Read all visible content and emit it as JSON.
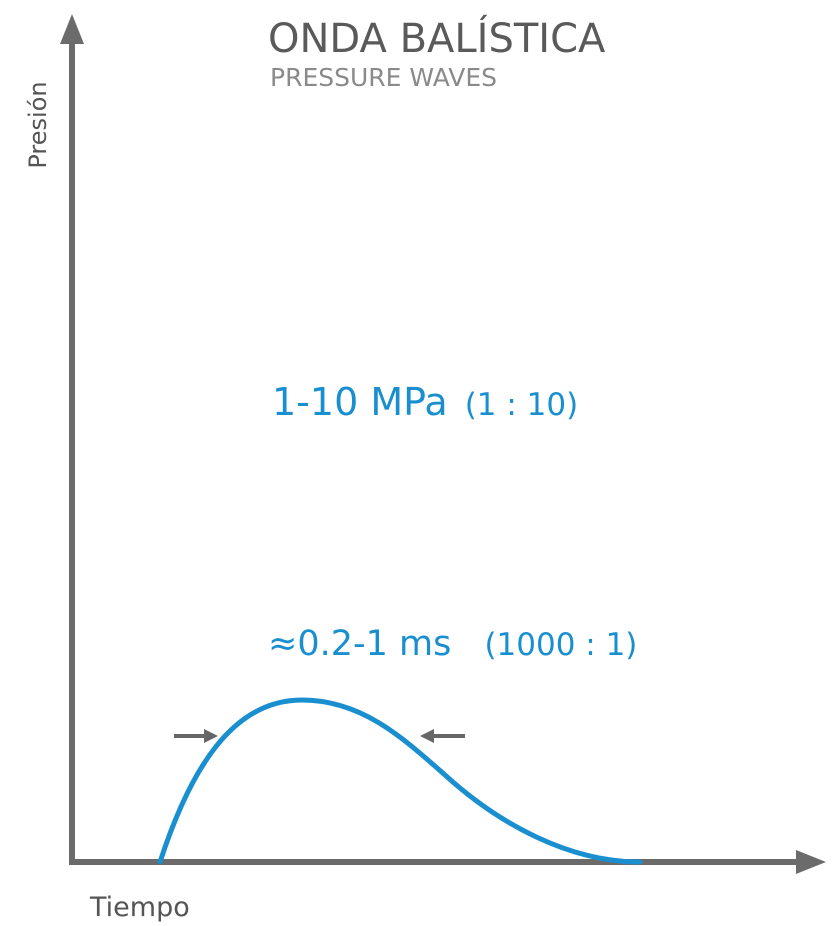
{
  "title": "ONDA BALÍSTICA",
  "subtitle": "PRESSURE WAVES",
  "y_axis_label": "Presión",
  "x_axis_label": "Tiempo",
  "pressure_annotation": {
    "main": "1-10 MPa",
    "ratio": "(1 : 10)"
  },
  "duration_annotation": {
    "main": "≈0.2-1 ms",
    "ratio": "(1000 : 1)"
  },
  "colors": {
    "axis": "#6b6b6b",
    "title": "#5a5a5a",
    "subtitle": "#8a8a8a",
    "label": "#555555",
    "accent": "#1a8fd0",
    "arrow": "#666666"
  }
}
